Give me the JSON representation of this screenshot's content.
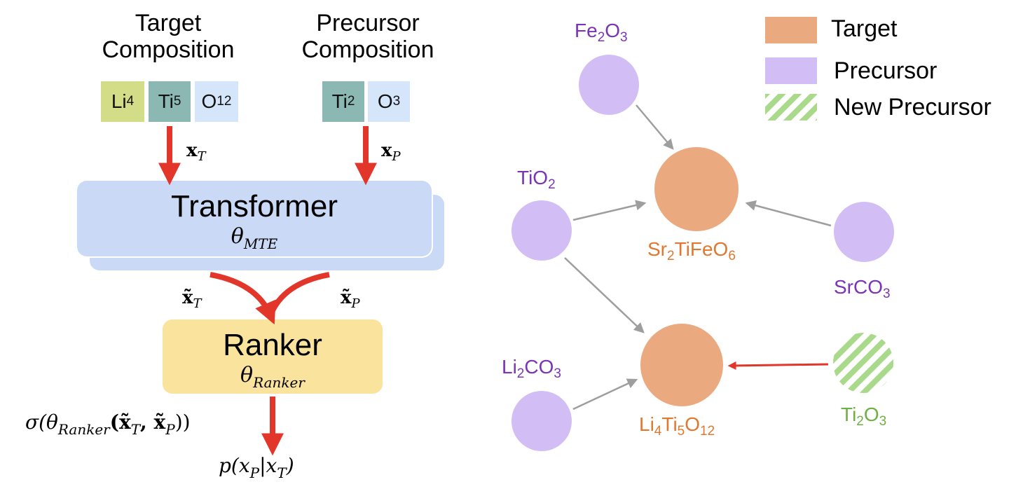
{
  "colors": {
    "arrow_red": "#e2362b",
    "arrow_gray": "#9e9e9e",
    "target_fill": "#eba97f",
    "target_text": "#e0782f",
    "precursor_fill": "#d2bdf5",
    "precursor_text": "#7a34b5",
    "new_precursor_text": "#6fb044",
    "new_precursor_stripe": "#a9d98a",
    "transformer_fill": "#cad9f5",
    "ranker_fill": "#fae39c"
  },
  "pipeline": {
    "target_header": [
      "Target",
      "Composition"
    ],
    "precursor_header": [
      "Precursor",
      "Composition"
    ],
    "target_tokens": [
      {
        "el": "Li",
        "sub": "4",
        "color": "#d3dc87"
      },
      {
        "el": "Ti",
        "sub": "5",
        "color": "#8bb8b2"
      },
      {
        "el": "O",
        "sub": "12",
        "color": "#d5e5fa"
      }
    ],
    "precursor_tokens": [
      {
        "el": "Ti",
        "sub": "2",
        "color": "#8bb8b2"
      },
      {
        "el": "O",
        "sub": "3",
        "color": "#d5e5fa"
      }
    ],
    "x_target": {
      "sym": "x",
      "sub": "T"
    },
    "x_precursor": {
      "sym": "x",
      "sub": "P"
    },
    "transformer": {
      "title": "Transformer",
      "param": "θ",
      "param_sub": "MTE"
    },
    "embed_target": {
      "sym": "x̃",
      "sub": "T"
    },
    "embed_precursor": {
      "sym": "x̃",
      "sub": "P"
    },
    "ranker": {
      "title": "Ranker",
      "param": "θ",
      "param_sub": "Ranker"
    },
    "sigma_expr": "σ(θ",
    "sigma_sub": "Ranker",
    "sigma_args": "(x̃",
    "sigma_args2": ", x̃",
    "sigma_close": "))",
    "prob_expr": "p(x",
    "prob_mid": "|x",
    "prob_close": ")"
  },
  "graph": {
    "legend": [
      {
        "label": "Target",
        "kind": "target"
      },
      {
        "label": "Precursor",
        "kind": "precursor"
      },
      {
        "label": "New Precursor",
        "kind": "new"
      }
    ],
    "nodes": [
      {
        "id": "fe2o3",
        "parts": [
          [
            "Fe",
            ""
          ],
          [
            "",
            "2"
          ],
          [
            "O",
            ""
          ],
          [
            "",
            "3"
          ]
        ],
        "kind": "precursor"
      },
      {
        "id": "tio2",
        "parts": [
          [
            "TiO",
            ""
          ],
          [
            "",
            "2"
          ]
        ],
        "kind": "precursor"
      },
      {
        "id": "sr2tifeo6",
        "parts": [
          [
            "Sr",
            ""
          ],
          [
            "",
            "2"
          ],
          [
            "TiFeO",
            ""
          ],
          [
            "",
            "6"
          ]
        ],
        "kind": "target"
      },
      {
        "id": "srco3",
        "parts": [
          [
            "SrCO",
            ""
          ],
          [
            "",
            "3"
          ]
        ],
        "kind": "precursor"
      },
      {
        "id": "li2co3",
        "parts": [
          [
            "Li",
            ""
          ],
          [
            "",
            "2"
          ],
          [
            "CO",
            ""
          ],
          [
            "",
            "3"
          ]
        ],
        "kind": "precursor"
      },
      {
        "id": "li4ti5o12",
        "parts": [
          [
            "Li",
            ""
          ],
          [
            "",
            "4"
          ],
          [
            "Ti",
            ""
          ],
          [
            "",
            "5"
          ],
          [
            "O",
            ""
          ],
          [
            "",
            "12"
          ]
        ],
        "kind": "target"
      },
      {
        "id": "ti2o3",
        "parts": [
          [
            "Ti",
            ""
          ],
          [
            "",
            "2"
          ],
          [
            "O",
            ""
          ],
          [
            "",
            "3"
          ]
        ],
        "kind": "new"
      }
    ]
  }
}
